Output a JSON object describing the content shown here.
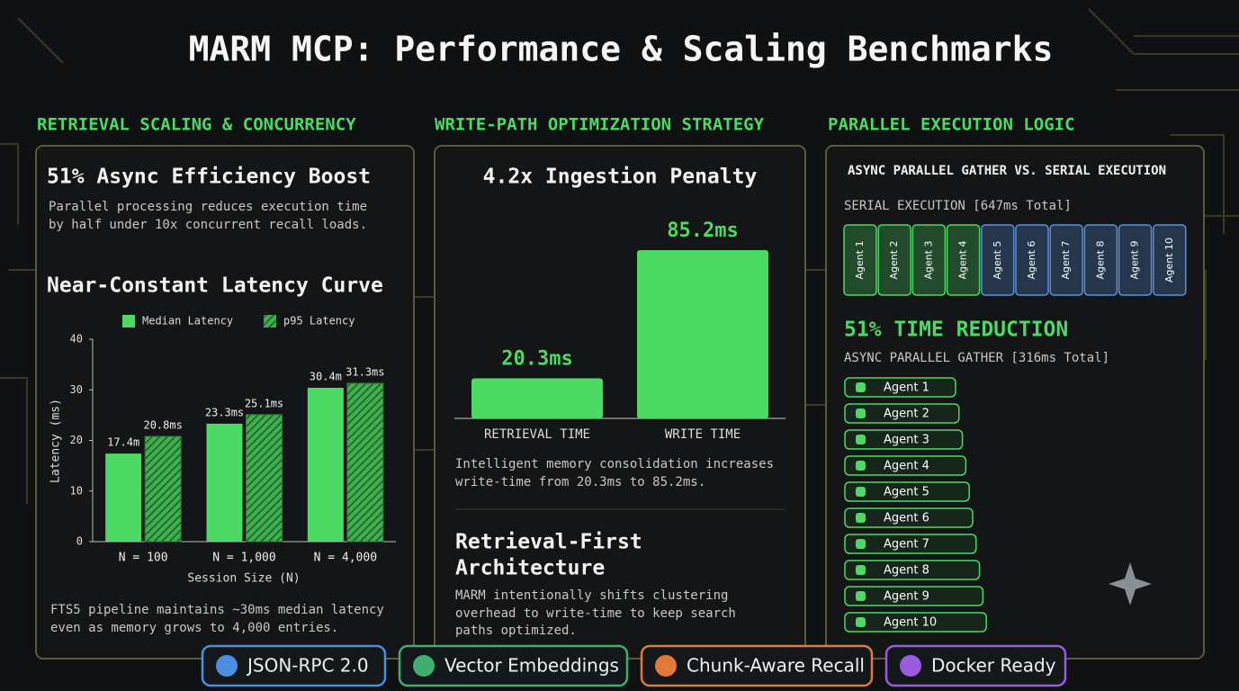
{
  "title": "MARM MCP: Performance & Scaling Benchmarks",
  "panels": [
    {
      "heading": "RETRIEVAL SCALING & CONCURRENCY",
      "headline": "51% Async Efficiency Boost",
      "description": [
        "Parallel processing reduces execution time",
        "by half under 10x concurrent recall loads."
      ],
      "footnote": [
        "FTS5 pipeline maintains ~30ms median latency",
        "even as memory grows to 4,000 entries."
      ]
    },
    {
      "heading": "WRITE-PATH OPTIMIZATION STRATEGY",
      "description": [
        "Intelligent memory consolidation increases",
        "write-time from 20.3ms to 85.2ms."
      ],
      "subheading": [
        "Retrieval-First",
        "Architecture"
      ],
      "subdescription": [
        "MARM intentionally shifts clustering",
        "overhead to write-time to keep search",
        "paths optimized."
      ]
    },
    {
      "heading": "PARALLEL EXECUTION LOGIC",
      "diagram_title": "ASYNC PARALLEL GATHER VS. SERIAL EXECUTION",
      "serial_label": "SERIAL EXECUTION [647ms Total]",
      "serial_agents": [
        {
          "label": "Agent 1",
          "color": "#4cd964"
        },
        {
          "label": "Agent 2",
          "color": "#4cd964"
        },
        {
          "label": "Agent 3",
          "color": "#4cd964"
        },
        {
          "label": "Agent 4",
          "color": "#4cd964"
        },
        {
          "label": "Agent 5",
          "color": "#5b8fe0"
        },
        {
          "label": "Agent 6",
          "color": "#5b8fe0"
        },
        {
          "label": "Agent 7",
          "color": "#5b8fe0"
        },
        {
          "label": "Agent 8",
          "color": "#5b8fe0"
        },
        {
          "label": "Agent 9",
          "color": "#5b8fe0"
        },
        {
          "label": "Agent 10",
          "color": "#5b8fe0"
        }
      ],
      "reduction": "51% TIME REDUCTION",
      "async_label": "ASYNC PARALLEL GATHER [316ms Total]",
      "async_agents": [
        "Agent 1",
        "Agent 2",
        "Agent 3",
        "Agent 4",
        "Agent 5",
        "Agent 6",
        "Agent 7",
        "Agent 8",
        "Agent 9",
        "Agent 10"
      ]
    }
  ],
  "chart_data": [
    {
      "type": "bar",
      "title": "Near-Constant Latency Curve",
      "categories": [
        "N = 100",
        "N = 1,000",
        "N = 4,000"
      ],
      "series": [
        {
          "name": "Median Latency",
          "color": "#4cd964",
          "values": [
            17.4,
            23.3,
            30.4
          ],
          "value_labels": [
            "17.4m",
            "23.3ms",
            "30.4m"
          ]
        },
        {
          "name": "p95 Latency",
          "color": "#4cd964",
          "pattern": "hatch",
          "values": [
            20.8,
            25.1,
            31.3
          ],
          "value_labels": [
            "20.8ms",
            "25.1ms",
            "31.3ms"
          ]
        }
      ],
      "xlabel": "Session Size (N)",
      "ylabel": "Latency (ms)",
      "ylim": [
        0,
        40
      ],
      "yticks": [
        0,
        10,
        20,
        30,
        40
      ]
    },
    {
      "type": "bar",
      "title": "4.2x Ingestion Penalty",
      "categories": [
        "RETRIEVAL TIME",
        "WRITE TIME"
      ],
      "values": [
        20.3,
        85.2
      ],
      "value_labels": [
        "20.3ms",
        "85.2ms"
      ],
      "color": "#4cd964"
    }
  ],
  "badges": [
    {
      "label": "JSON-RPC 2.0",
      "color": "#4a8fe0"
    },
    {
      "label": "Vector Embeddings",
      "color": "#3fae6e"
    },
    {
      "label": "Chunk-Aware Recall",
      "color": "#e0793a"
    },
    {
      "label": "Docker Ready",
      "color": "#9a5be0"
    }
  ]
}
